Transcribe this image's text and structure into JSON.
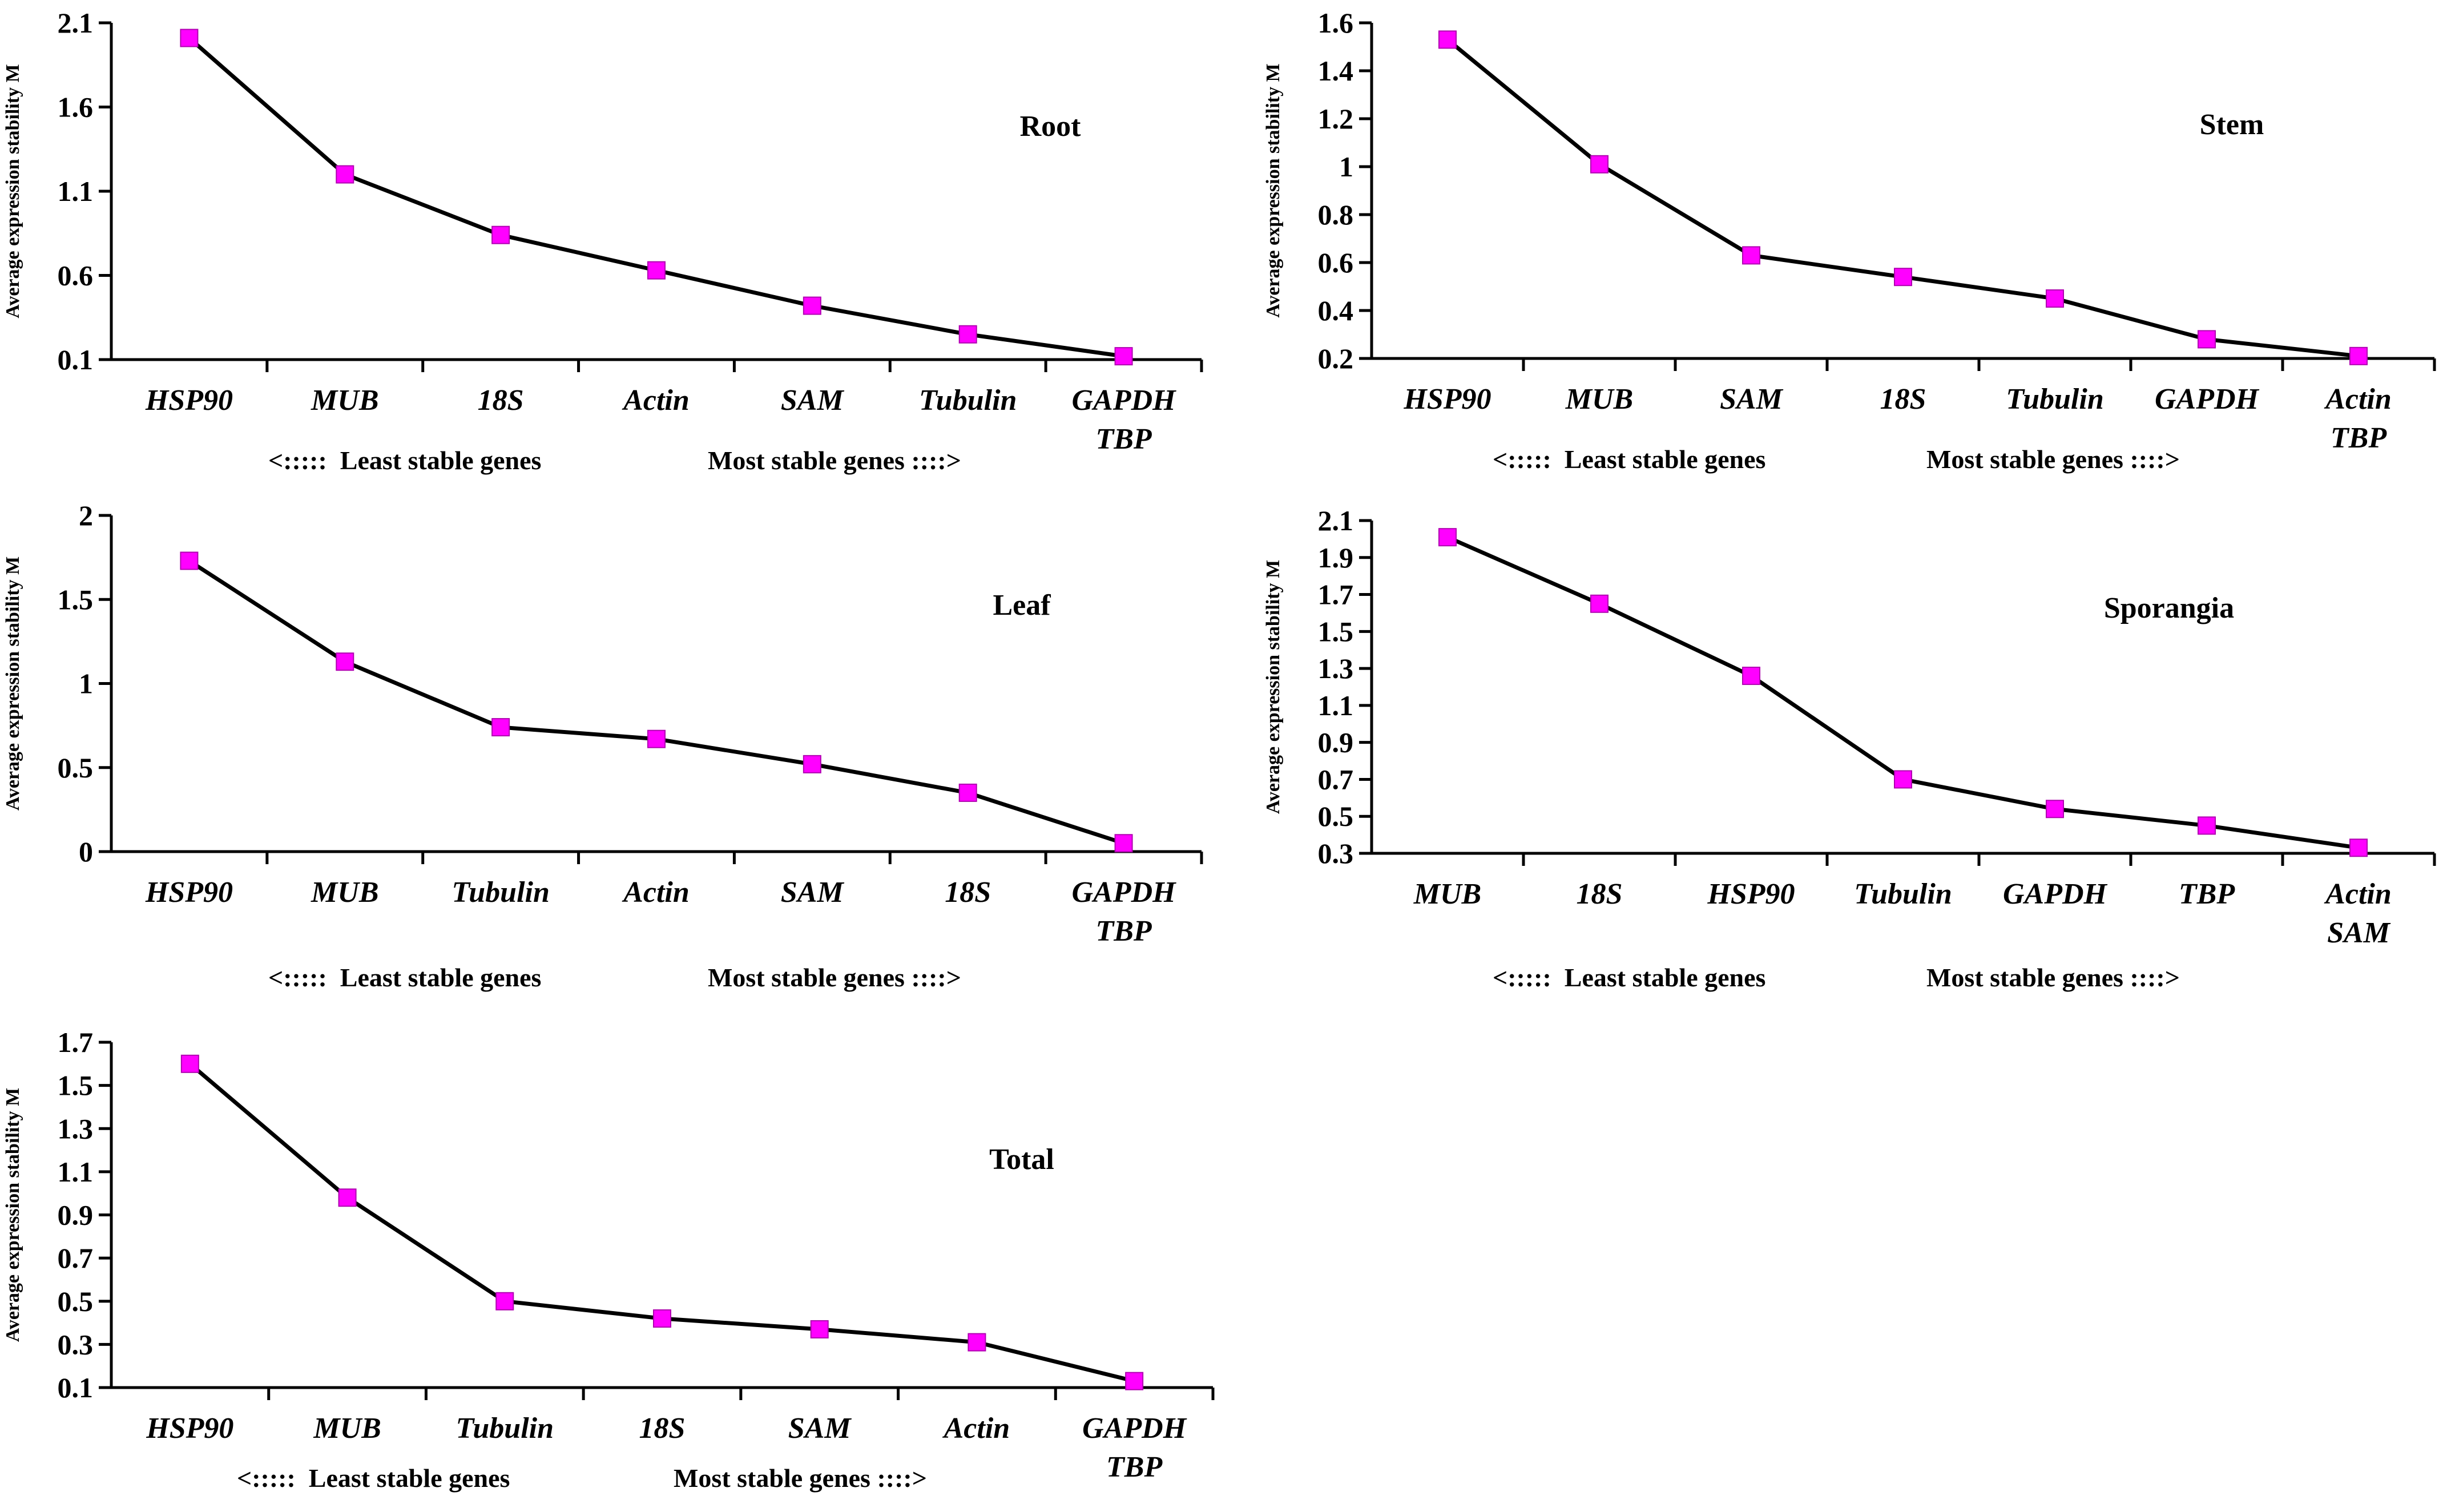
{
  "chart_data": [
    {
      "type": "line",
      "title": "Root",
      "ylabel": "Average expression stability M",
      "xlabel_left": "<:::::  Least stable genes",
      "xlabel_right": "Most stable genes ::::>",
      "ylim": [
        0.1,
        2.1
      ],
      "yticks": [
        "0.1",
        "0.6",
        "1.1",
        "1.6",
        "2.1"
      ],
      "categories": [
        [
          "HSP90"
        ],
        [
          "MUB"
        ],
        [
          "18S"
        ],
        [
          "Actin"
        ],
        [
          "SAM"
        ],
        [
          "Tubulin"
        ],
        [
          "GAPDH",
          "TBP"
        ]
      ],
      "values": [
        2.01,
        1.2,
        0.84,
        0.63,
        0.42,
        0.25,
        0.12
      ],
      "marker_color": "#ff00ff",
      "line_color": "#000000"
    },
    {
      "type": "line",
      "title": "Stem",
      "ylabel": "Average expression stability M",
      "xlabel_left": "<:::::  Least stable genes",
      "xlabel_right": "Most stable genes ::::>",
      "ylim": [
        0.2,
        1.6
      ],
      "yticks": [
        "0.2",
        "0.4",
        "0.6",
        "0.8",
        "1",
        "1.2",
        "1.4",
        "1.6"
      ],
      "categories": [
        [
          "HSP90"
        ],
        [
          "MUB"
        ],
        [
          "SAM"
        ],
        [
          "18S"
        ],
        [
          "Tubulin"
        ],
        [
          "GAPDH"
        ],
        [
          "Actin",
          "TBP"
        ]
      ],
      "values": [
        1.53,
        1.01,
        0.63,
        0.54,
        0.45,
        0.28,
        0.21
      ],
      "marker_color": "#ff00ff",
      "line_color": "#000000"
    },
    {
      "type": "line",
      "title": "Leaf",
      "ylabel": "Average expression stability M",
      "xlabel_left": "<:::::  Least stable genes",
      "xlabel_right": "Most stable genes ::::>",
      "ylim": [
        0,
        2
      ],
      "yticks": [
        "0",
        "0.5",
        "1",
        "1.5",
        "2"
      ],
      "categories": [
        [
          "HSP90"
        ],
        [
          "MUB"
        ],
        [
          "Tubulin"
        ],
        [
          "Actin"
        ],
        [
          "SAM"
        ],
        [
          "18S"
        ],
        [
          "GAPDH",
          "TBP"
        ]
      ],
      "values": [
        1.73,
        1.13,
        0.74,
        0.67,
        0.52,
        0.35,
        0.05
      ],
      "marker_color": "#ff00ff",
      "line_color": "#000000"
    },
    {
      "type": "line",
      "title": "Sporangia",
      "ylabel": "Average expression stability M",
      "xlabel_left": "<:::::  Least stable genes",
      "xlabel_right": "Most stable genes ::::>",
      "ylim": [
        0.3,
        2.1
      ],
      "yticks": [
        "0.3",
        "0.5",
        "0.7",
        "0.9",
        "1.1",
        "1.3",
        "1.5",
        "1.7",
        "1.9",
        "2.1"
      ],
      "categories": [
        [
          "MUB"
        ],
        [
          "18S"
        ],
        [
          "HSP90"
        ],
        [
          "Tubulin"
        ],
        [
          "GAPDH"
        ],
        [
          "TBP"
        ],
        [
          "Actin",
          "SAM"
        ]
      ],
      "values": [
        2.01,
        1.65,
        1.26,
        0.7,
        0.54,
        0.45,
        0.33
      ],
      "marker_color": "#ff00ff",
      "line_color": "#000000"
    },
    {
      "type": "line",
      "title": "Total",
      "ylabel": "Average expression stability M",
      "xlabel_left": "<:::::  Least stable genes",
      "xlabel_right": "Most stable genes ::::>",
      "ylim": [
        0.1,
        1.7
      ],
      "yticks": [
        "0.1",
        "0.3",
        "0.5",
        "0.7",
        "0.9",
        "1.1",
        "1.3",
        "1.5",
        "1.7"
      ],
      "categories": [
        [
          "HSP90"
        ],
        [
          "MUB"
        ],
        [
          "Tubulin"
        ],
        [
          "18S"
        ],
        [
          "SAM"
        ],
        [
          "Actin"
        ],
        [
          "GAPDH",
          "TBP"
        ]
      ],
      "values": [
        1.6,
        0.98,
        0.5,
        0.42,
        0.37,
        0.31,
        0.13
      ],
      "marker_color": "#ff00ff",
      "line_color": "#000000"
    }
  ]
}
